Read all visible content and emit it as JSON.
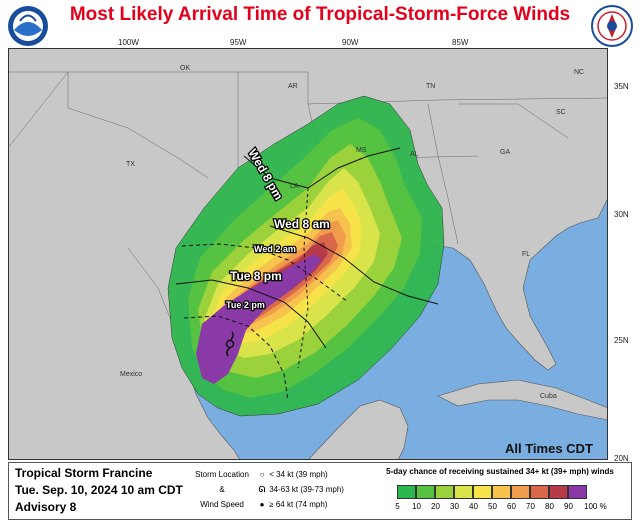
{
  "header": {
    "title": "Most Likely Arrival Time of Tropical-Storm-Force Winds",
    "left_logo": "NOAA",
    "right_logo": "NATIONAL WEATHER SERVICE"
  },
  "map": {
    "longitudes": [
      "100W",
      "95W",
      "90W",
      "85W"
    ],
    "latitudes": [
      "35N",
      "30N",
      "25N",
      "20N"
    ],
    "states": [
      "OK",
      "AR",
      "TN",
      "NC",
      "SC",
      "MS",
      "AL",
      "GA",
      "TX",
      "LA",
      "FL"
    ],
    "regions": [
      "Mexico",
      "Cuba"
    ],
    "arrival_labels": [
      "Wed 8 pm",
      "Wed 8 am",
      "Wed 2 am",
      "Tue 8 pm",
      "Tue 2 pm"
    ],
    "note": "All Times CDT",
    "colors": {
      "land": "#c8c8c8",
      "water": "#7aaee0",
      "p5": "#2eb64e",
      "p10": "#55c242",
      "p20": "#9bd23c",
      "p30": "#d9e44a",
      "p40": "#f6e34a",
      "p50": "#f7c24e",
      "p60": "#f19b4c",
      "p70": "#d9684a",
      "p80": "#b63a48",
      "p90": "#8a3aa6"
    }
  },
  "legend": {
    "storm_name": "Tropical Storm Francine",
    "time": "Tue. Sep. 10, 2024  10 am CDT",
    "advisory": "Advisory 8",
    "location_title_1": "Storm Location",
    "location_title_2": "&",
    "location_title_3": "Wind Speed",
    "keys": [
      {
        "label": "< 34 kt (39 mph)"
      },
      {
        "label": "34-63 kt (39-73 mph)"
      },
      {
        "label": "≥ 64 kt (74 mph)"
      }
    ],
    "prob_title": "5-day chance of receiving sustained 34+ kt (39+ mph) winds",
    "prob_labels": [
      "5",
      "10",
      "20",
      "30",
      "40",
      "50",
      "60",
      "70",
      "80",
      "90",
      "100 %"
    ],
    "prob_colors": [
      "#2eb64e",
      "#55c242",
      "#9bd23c",
      "#d9e44a",
      "#f6e34a",
      "#f7c24e",
      "#f19b4c",
      "#d9684a",
      "#b63a48",
      "#8a3aa6"
    ]
  }
}
